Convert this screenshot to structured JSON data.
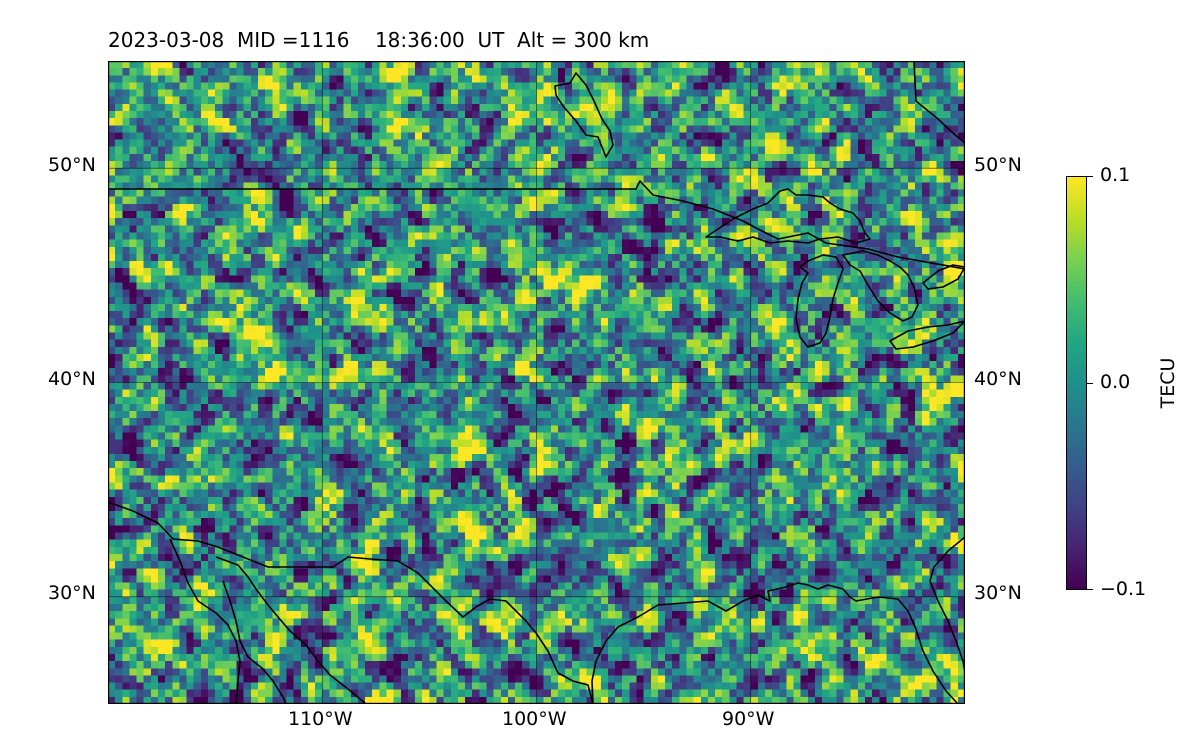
{
  "title": {
    "text": "2023-03-08  MID =1116    18:36:00  UT  Alt = 300 km"
  },
  "map": {
    "extent": {
      "lon_min": -120,
      "lon_max": -80,
      "lat_min": 25,
      "lat_max": 55
    },
    "gridlines": {
      "lons": [
        -110,
        -100,
        -90
      ],
      "lats": [
        30,
        40,
        50
      ]
    },
    "lat_labels": [
      {
        "lat": 50,
        "text": "50°N"
      },
      {
        "lat": 40,
        "text": "40°N"
      },
      {
        "lat": 30,
        "text": "30°N"
      }
    ],
    "lon_labels": [
      {
        "lon": -110,
        "text": "110°W"
      },
      {
        "lon": -100,
        "text": "100°W"
      },
      {
        "lon": -90,
        "text": "90°W"
      }
    ],
    "colormap": "viridis",
    "value_range": [
      -0.1,
      0.1
    ],
    "features": [
      "coastlines",
      "us-canada-border",
      "us-mexico-border",
      "great-lakes"
    ]
  },
  "colorbar": {
    "label": "TECU",
    "ticks": [
      {
        "value": 0.1,
        "text": "0.1"
      },
      {
        "value": 0.0,
        "text": "0.0"
      },
      {
        "value": -0.1,
        "text": "−0.1"
      }
    ]
  }
}
